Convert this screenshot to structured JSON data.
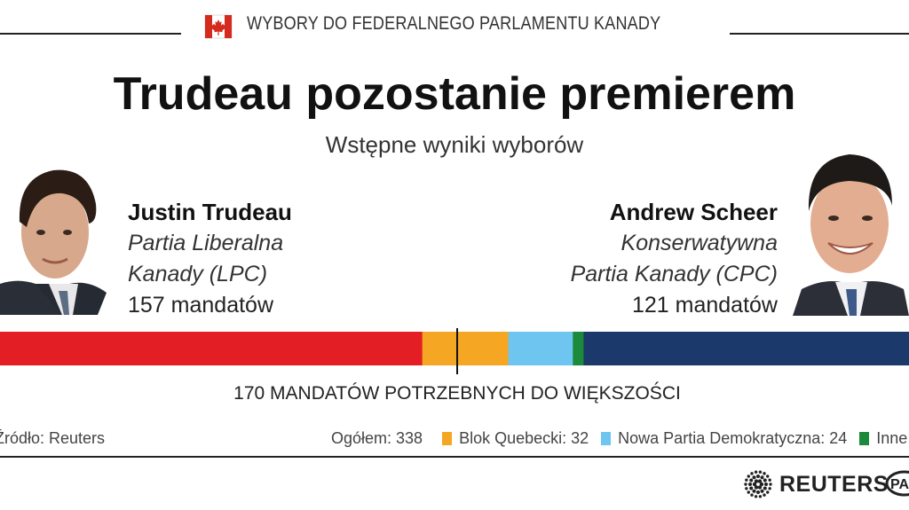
{
  "header": {
    "kicker": "WYBORY DO FEDERALNEGO PARLAMENTU KANADY",
    "title": "Trudeau pozostanie premierem",
    "subtitle": "Wstępne wyniki wyborów"
  },
  "candidates": {
    "left": {
      "name": "Justin Trudeau",
      "party_line1": "Partia Liberalna",
      "party_line2": "Kanady (LPC)",
      "seats_text": "157 mandatów"
    },
    "right": {
      "name": "Andrew Scheer",
      "party_line1": "Konserwatywna",
      "party_line2": "Partia Kanady (CPC)",
      "seats_text": "121 mandatów"
    }
  },
  "chart_data": {
    "type": "bar",
    "orientation": "horizontal-stacked",
    "total": 338,
    "majority": 170,
    "majority_label": "170 MANDATÓW POTRZEBNYCH DO WIĘKSZOŚCI",
    "series": [
      {
        "name": "Partia Liberalna Kanady (LPC)",
        "value": 157,
        "color": "#e31e24"
      },
      {
        "name": "Blok Quebecki",
        "value": 32,
        "color": "#f5a623"
      },
      {
        "name": "Nowa Partia Demokratyczna",
        "value": 24,
        "color": "#6ec5ef"
      },
      {
        "name": "Inne",
        "value": 4,
        "color": "#1b8a3a"
      },
      {
        "name": "Konserwatywna Partia Kanady (CPC)",
        "value": 121,
        "color": "#1b3a6b"
      }
    ]
  },
  "footer": {
    "source": "Źródło: Reuters",
    "total_label": "Ogółem: 338",
    "legend": [
      {
        "label": "Blok Quebecki: 32",
        "color": "#f5a623"
      },
      {
        "label": "Nowa Partia Demokratyczna: 24",
        "color": "#6ec5ef"
      },
      {
        "label": "Inne",
        "color": "#1b8a3a"
      }
    ]
  },
  "branding": {
    "reuters": "REUTERS",
    "pap": "PAP",
    "logo_icon": "reuters-dots-logo",
    "flag_icon": "canada-flag-icon"
  }
}
